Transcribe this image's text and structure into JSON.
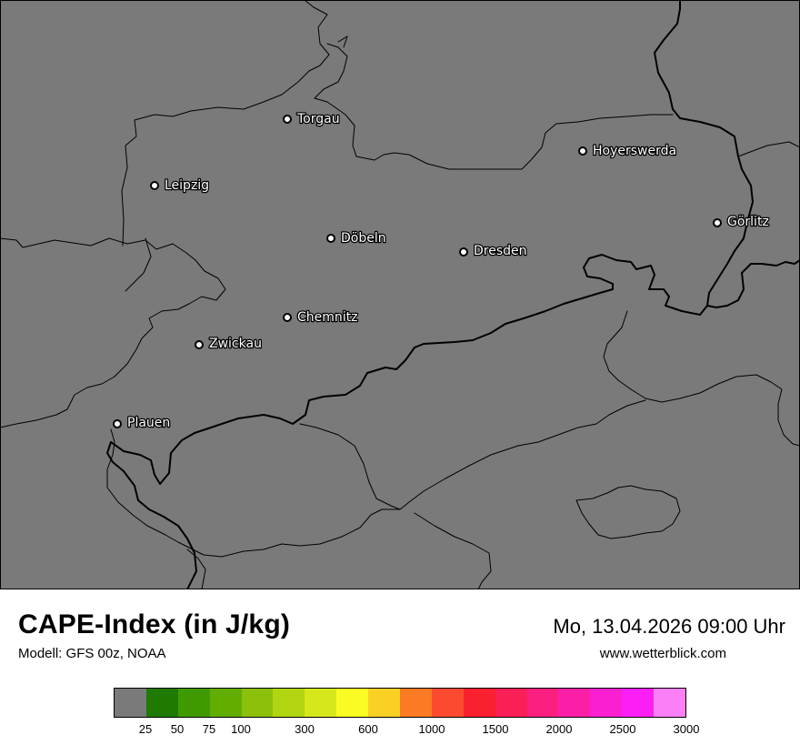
{
  "map": {
    "background_color": "#7a7a7a",
    "cities": [
      {
        "name": "Torgau"
      },
      {
        "name": "Hoyerswerda"
      },
      {
        "name": "Leipzig"
      },
      {
        "name": "Görlitz"
      },
      {
        "name": "Döbeln"
      },
      {
        "name": "Dresden"
      },
      {
        "name": "Chemnitz"
      },
      {
        "name": "Zwickau"
      },
      {
        "name": "Plauen"
      }
    ]
  },
  "header": {
    "title": "CAPE-Index (in J/kg)",
    "model": "Modell: GFS 00z, NOAA",
    "datetime": "Mo, 13.04.2026 09:00 Uhr",
    "website": "www.wetterblick.com"
  },
  "colorbar": {
    "colors": [
      "#7a7a7a",
      "#1e7a00",
      "#3f9a00",
      "#62ad00",
      "#8cc00a",
      "#b2d512",
      "#d6e81c",
      "#fbfb24",
      "#fbd024",
      "#fb7a24",
      "#fb4a30",
      "#fb2030",
      "#fb1f57",
      "#fb1f80",
      "#fb1fa8",
      "#fb1fd2",
      "#fb1ff5",
      "#fb80f5"
    ],
    "ticks": [
      "25",
      "50",
      "75",
      "100",
      "300",
      "600",
      "1000",
      "1500",
      "2000",
      "2500",
      "3000"
    ]
  }
}
